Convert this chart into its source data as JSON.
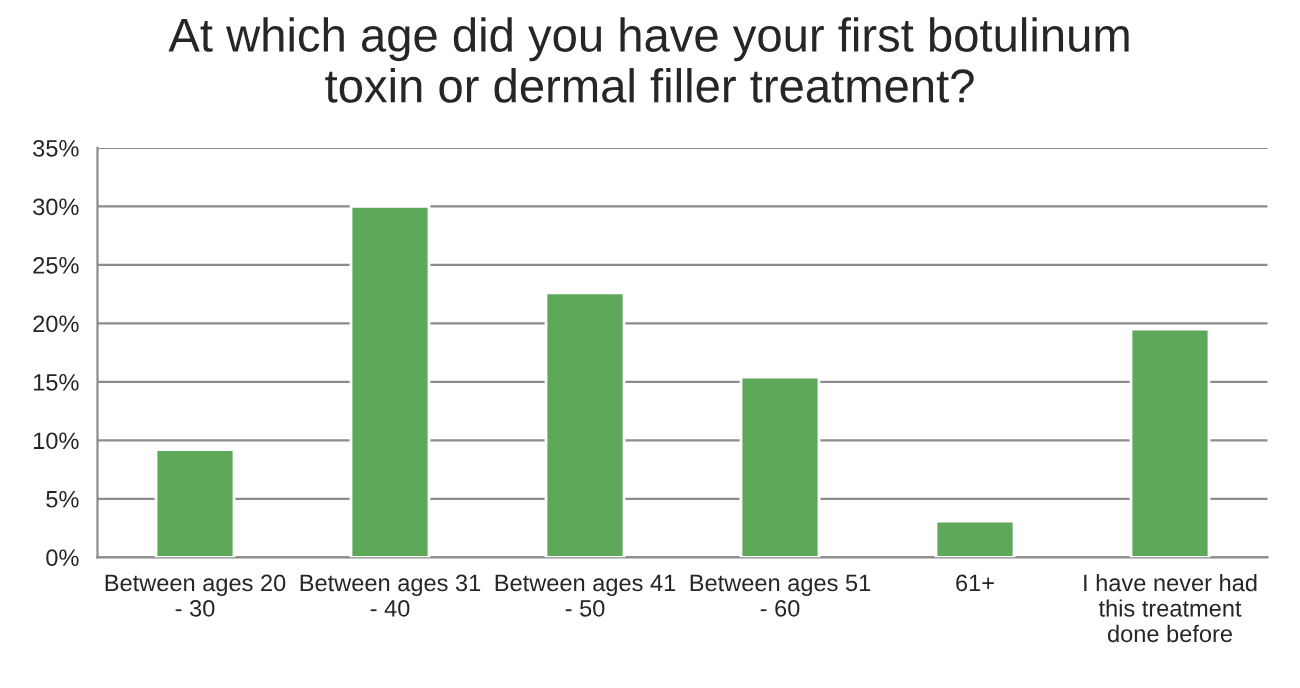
{
  "chart_data": {
    "type": "bar",
    "title": "At which age did you have your first botulinum\ntoxin or dermal filler treatment?",
    "categories": [
      "Between ages 20\n- 30",
      "Between ages 31\n- 40",
      "Between ages 41\n- 50",
      "Between ages 51\n- 60",
      "61+",
      "I have never had\nthis treatment\ndone before"
    ],
    "values": [
      9.2,
      30.0,
      22.6,
      15.4,
      3.1,
      19.5
    ],
    "color": "#5ea85a",
    "ylim": [
      0,
      35
    ],
    "yticks": [
      {
        "value": 0,
        "label": "0%"
      },
      {
        "value": 5,
        "label": "5%"
      },
      {
        "value": 10,
        "label": "10%"
      },
      {
        "value": 15,
        "label": "15%"
      },
      {
        "value": 20,
        "label": "20%"
      },
      {
        "value": 25,
        "label": "25%"
      },
      {
        "value": 30,
        "label": "30%"
      },
      {
        "value": 35,
        "label": "35%"
      }
    ],
    "grid": "y"
  }
}
